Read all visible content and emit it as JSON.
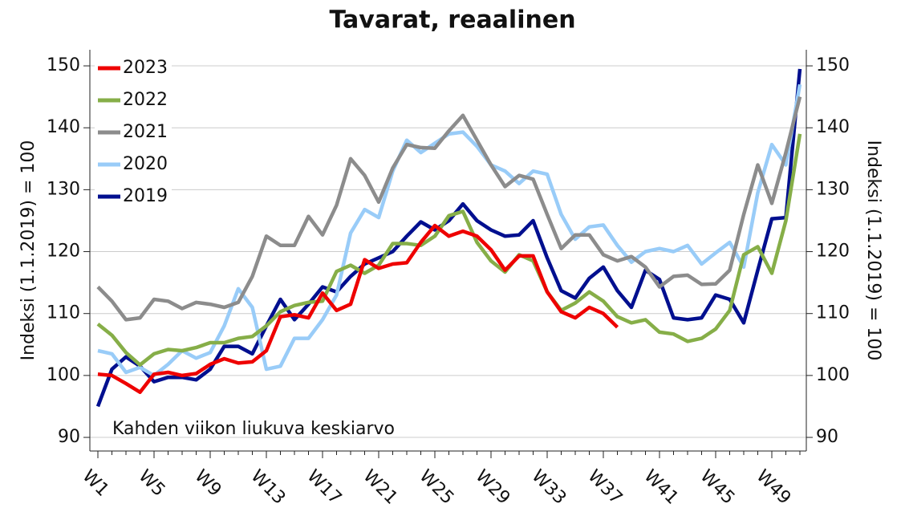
{
  "chart_data": {
    "type": "line",
    "title": "Tavarat, reaalinen",
    "ylabel": "Indeksi (1.1.2019) = 100",
    "y2label": "Indeksi (1.1.2019) = 100",
    "annotation": "Kahden viikon liukuva keskiarvo",
    "categories": [
      "W1",
      null,
      null,
      null,
      "W5",
      null,
      null,
      null,
      "W9",
      null,
      null,
      null,
      "W13",
      null,
      null,
      null,
      "W17",
      null,
      null,
      null,
      "W21",
      null,
      null,
      null,
      "W25",
      null,
      null,
      null,
      "W29",
      null,
      null,
      null,
      "W33",
      null,
      null,
      null,
      "W37",
      null,
      null,
      null,
      "W41",
      null,
      null,
      null,
      "W45",
      null,
      null,
      null,
      "W49",
      null,
      null
    ],
    "ylim": [
      87.8,
      152.6
    ],
    "yticks": [
      90,
      100,
      110,
      120,
      130,
      140,
      150
    ],
    "y2lim": [
      87.8,
      152.6
    ],
    "y2ticks": [
      90,
      100,
      110,
      120,
      130,
      140,
      150
    ],
    "grid": true,
    "legend": "top-left",
    "series": [
      {
        "name": "2023",
        "color": "#ee0000",
        "values": [
          100.2,
          100,
          98.7,
          97.3,
          100.2,
          100.5,
          100,
          100.3,
          101.8,
          102.7,
          102,
          102.2,
          104,
          109.5,
          109.8,
          109.3,
          113.3,
          110.5,
          111.5,
          118.7,
          117.3,
          118,
          118.2,
          121.5,
          124.2,
          122.5,
          123.3,
          122.5,
          120.3,
          117,
          119.3,
          119.3,
          113.5,
          110.3,
          109.3,
          111,
          110,
          107.8,
          null,
          null,
          null,
          null,
          null,
          null,
          null,
          null,
          null,
          null,
          null,
          null,
          null
        ]
      },
      {
        "name": "2022",
        "color": "#86ae48",
        "values": [
          108.3,
          106.5,
          103.7,
          101.7,
          103.5,
          104.2,
          104,
          104.5,
          105.3,
          105.3,
          106,
          106.3,
          108,
          110.3,
          111.3,
          111.8,
          112,
          116.8,
          117.8,
          116.5,
          117.8,
          121.3,
          121.3,
          121,
          122.5,
          125.8,
          126.5,
          121.5,
          118.5,
          116.7,
          119.5,
          118.5,
          113.5,
          110.5,
          111.7,
          113.5,
          112,
          109.5,
          108.5,
          109,
          107,
          106.7,
          105.5,
          106,
          107.5,
          110.5,
          119.5,
          120.8,
          116.5,
          125,
          139
        ]
      },
      {
        "name": "2021",
        "color": "#8c8c8c",
        "values": [
          114.3,
          112,
          109,
          109.3,
          112.3,
          112,
          110.8,
          111.8,
          111.5,
          111,
          111.8,
          116,
          122.5,
          121,
          121,
          125.7,
          122.7,
          127.5,
          135,
          132.3,
          128,
          133.5,
          137.3,
          136.8,
          136.7,
          139.5,
          142,
          138,
          134,
          130.5,
          132.3,
          131.7,
          126,
          120.5,
          122.7,
          122.7,
          119.5,
          118.5,
          119.2,
          117.5,
          114.3,
          116,
          116.2,
          114.7,
          114.8,
          117,
          126,
          134,
          127.8,
          136,
          145
        ]
      },
      {
        "name": "2020",
        "color": "#99ccf8",
        "values": [
          104,
          103.5,
          100.5,
          101.3,
          100,
          101.8,
          104,
          102.8,
          103.7,
          108,
          114,
          111,
          101,
          101.5,
          106,
          106,
          109,
          113,
          123,
          126.8,
          125.5,
          133,
          138,
          136,
          137.5,
          139,
          139.3,
          137,
          134,
          133,
          131,
          133,
          132.5,
          126,
          122,
          124,
          124.3,
          121,
          118.3,
          120,
          120.5,
          120,
          121,
          118,
          119.8,
          121.5,
          117.5,
          129.5,
          137.3,
          134,
          147
        ]
      },
      {
        "name": "2019",
        "color": "#000f8f",
        "values": [
          95,
          101,
          103,
          101.5,
          99,
          99.7,
          99.7,
          99.3,
          101,
          104.7,
          104.7,
          103.5,
          108,
          112.3,
          109,
          111.5,
          114.3,
          113.5,
          116,
          118,
          119,
          120,
          122.5,
          124.8,
          123.5,
          125,
          127.7,
          125,
          123.5,
          122.5,
          122.7,
          125,
          119,
          113.7,
          112.5,
          115.7,
          117.5,
          113.7,
          111,
          117,
          115.5,
          109.3,
          109,
          109.3,
          113,
          112.3,
          108.5,
          117,
          125.3,
          125.5,
          149.5
        ]
      }
    ]
  }
}
